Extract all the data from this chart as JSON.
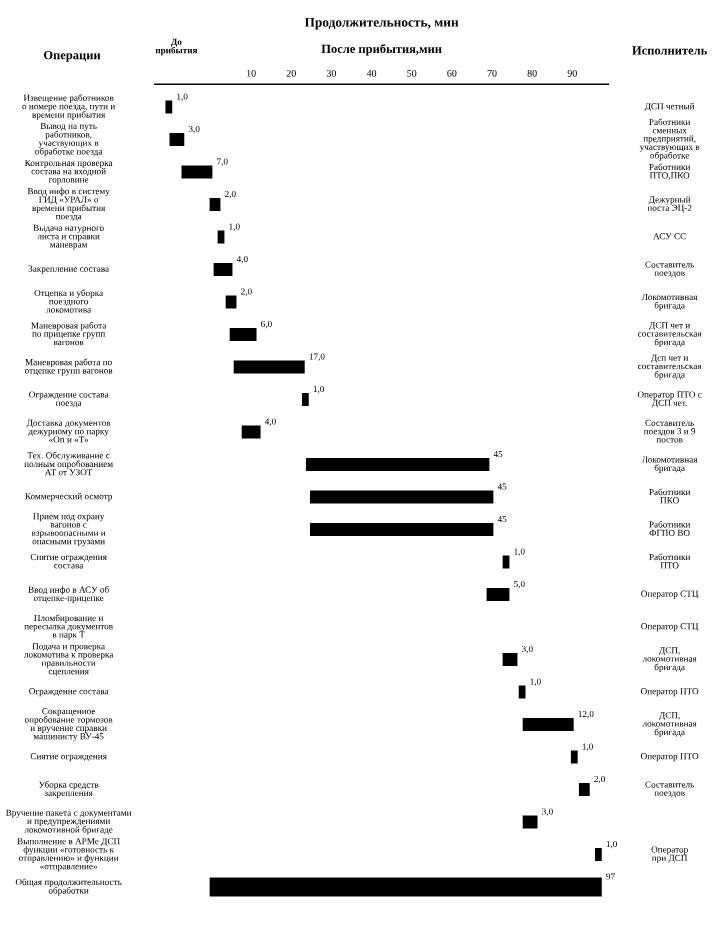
{
  "chart_data": {
    "type": "bar",
    "orientation": "horizontal",
    "title": "Продолжительность, мин",
    "xlabel": "После прибытия,мин",
    "annotations": [
      "Операции",
      "До\nприбытия",
      "Исполнитель"
    ],
    "categories": [
      "Извещение работников\nо номере поезда, пути и\nвремени прибытия",
      "Вывод на путь\nработников,\nучаствующих в\nобработке поезда",
      "Контрольная проверка\nсостава на входной\nгорловине",
      "Ввод инфо в систему\nГИД «УРАЛ» о\nвремени прибытия\nпоезда",
      "Выдача натурного\nлиста и справки\nманеврам",
      "Закрепление состава",
      "Отцепка и уборка\nпоездного\nлокомотива",
      "Маневровая работа\nпо прицепке групп\nвагонов",
      "Маневровая работа по\nотцепке групп вагонов",
      "Ограждение состава\nпоезда",
      "Доставка документов\nдежурному по парку\n«Оп и «Т»",
      "Тех. Обслуживание с\nполным опробованием\nАТ от УЗОТ",
      "Коммерческий осмотр",
      "Прием под охрану\nвагонов с\nвзрывоопасными и\nопасными грузами",
      "Снятие ограждения\nсостава",
      "Ввод инфо в АСУ об\nотцепке-прицепке",
      "Пломбирование и\nпересылка документов\nв парк Т",
      "Подача и проверка\nлокомотива к проверка\nправильности\nсцепления",
      "Ограждение состава",
      "Сокращенное\nопробование тормозов\nи вручение справки\nмашинисту ВУ-45",
      "Снятие ограждения",
      "Уборка средств\nзакрепления",
      "Вручение пакета с документами\nи предупреждениями\nлокомотивной бригаде",
      "Выполнение в АРМе ДСП\nфункции «готовность к\nотправлению» и функции\n«отправление»",
      "Общая продолжительность\nобработки"
    ],
    "y2_categories": [
      "ДСП четный",
      "Работники\nсменных\nпредприятий,\nучаствующих в\nобработке",
      "Работники\nПТО,ПКО",
      "Дежурный\nпоста ЭЦ-2",
      "АСУ СС",
      "Составитель\nпоездов",
      "Локомотивная\nбригада",
      "ДСП чет и\nсоставительская\nбригада",
      "Дсп чет и\nсоставительская\nбригада",
      "Оператор ПТО с\nДСП чет.",
      "Составитель\nпоездов 3 и 9\nпостов",
      "Локомотивная\nбригада",
      "Работники\nПКО",
      "Работники\nФГПО ВО",
      "Работники\nПТО",
      "Оператор СТЦ",
      "Оператор СТЦ",
      "ДСП,\nлокомотивная\nбригада",
      "Оператор ПТО",
      "ДСП,\nлокомотивная\nбригада",
      "Оператор ПТО",
      "Составитель\nпоездов",
      null,
      "Оператор\nпри ДСП",
      null
    ],
    "base": [
      -11,
      -10,
      -7,
      0,
      2,
      1,
      4,
      5,
      6,
      23,
      8,
      24,
      25,
      25,
      73,
      69,
      null,
      73,
      77,
      78,
      90,
      92,
      78,
      96,
      0
    ],
    "values": [
      1,
      3,
      7,
      2,
      1,
      4,
      2,
      6,
      17,
      1,
      4,
      45,
      45,
      45,
      1,
      5,
      null,
      3,
      1,
      12,
      1,
      2,
      3,
      1,
      97
    ],
    "value_labels": [
      "1,0",
      "3,0",
      "7,0",
      "2,0",
      "1,0",
      "4,0",
      "2,0",
      "6,0",
      "17,0",
      "1,0",
      "4,0",
      "45",
      "45",
      "45",
      "1,0",
      "5,0",
      null,
      "3,0",
      "1,0",
      "12,0",
      "1,0",
      "2,0",
      "3,0",
      "1,0",
      "97"
    ],
    "color": "#000000",
    "xlim": [
      -14,
      99
    ],
    "xticks": [
      10,
      20,
      30,
      40,
      50,
      60,
      70,
      80,
      90
    ],
    "grid": false,
    "legend": false
  }
}
